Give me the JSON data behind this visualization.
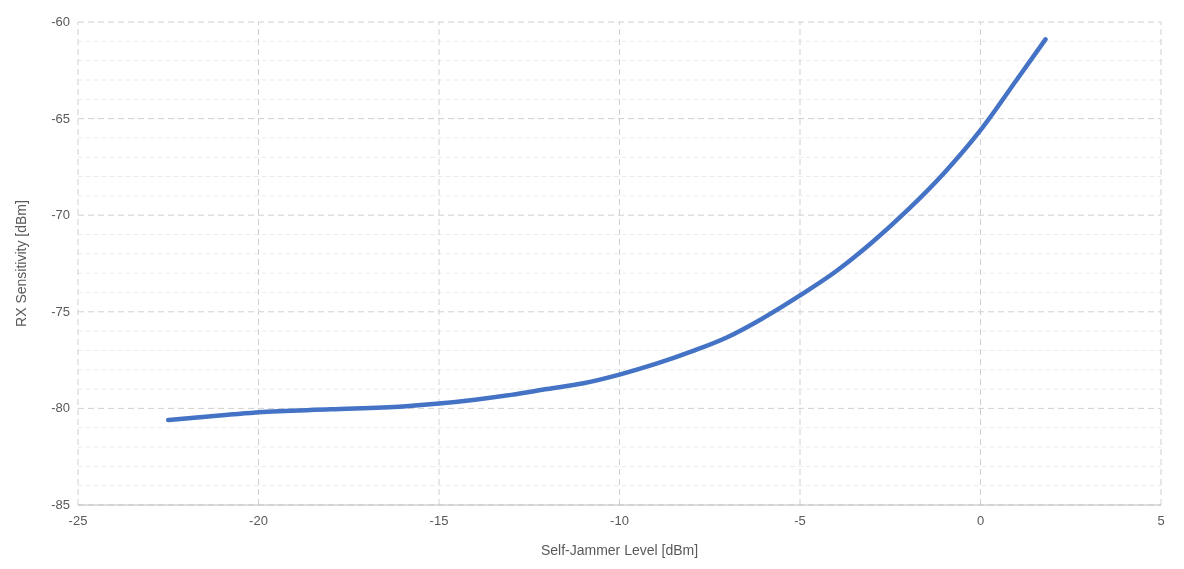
{
  "chart_data": {
    "type": "line",
    "xlabel": "Self-Jammer Level [dBm]",
    "ylabel": "RX Sensitivity [dBm]",
    "xlim": [
      -25,
      5
    ],
    "xticks": [
      -25,
      -20,
      -15,
      -10,
      -5,
      0,
      5
    ],
    "ylim": [
      -85,
      -60
    ],
    "yticks": [
      -85,
      -80,
      -75,
      -70,
      -65,
      -60
    ],
    "grid": true,
    "line_style": "solid",
    "series": [
      {
        "color": "#4472c4",
        "x": [
          -22.5,
          -21,
          -20,
          -18,
          -16,
          -15,
          -14,
          -13,
          -12,
          -11,
          -10,
          -9,
          -8,
          -7,
          -6,
          -5,
          -4,
          -3,
          -2,
          -1,
          0,
          1,
          1.8
        ],
        "values": [
          -80.6,
          -80.35,
          -80.2,
          -80.05,
          -79.9,
          -79.75,
          -79.55,
          -79.3,
          -79.0,
          -78.7,
          -78.25,
          -77.7,
          -77.05,
          -76.3,
          -75.3,
          -74.15,
          -72.9,
          -71.4,
          -69.7,
          -67.8,
          -65.6,
          -63.0,
          -60.9
        ]
      }
    ]
  }
}
